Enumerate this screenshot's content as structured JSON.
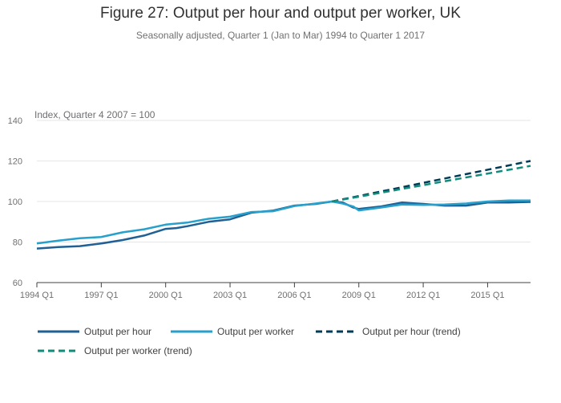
{
  "title": "Figure 27: Output per hour and output per worker, UK",
  "subtitle": "Seasonally adjusted, Quarter 1 (Jan to Mar) 1994 to Quarter 1 2017",
  "y_axis_title": "Index, Quarter 4 2007 = 100",
  "chart_data": {
    "type": "line",
    "title": "Figure 27: Output per hour and output per worker, UK",
    "ylabel": "Index, Quarter 4 2007 = 100",
    "ylim": [
      60,
      140
    ],
    "yticks": [
      60,
      80,
      100,
      120,
      140
    ],
    "x_tick_labels": [
      "1994 Q1",
      "1997 Q1",
      "2000 Q1",
      "2003 Q1",
      "2006 Q1",
      "2009 Q1",
      "2012 Q1",
      "2015 Q1"
    ],
    "grid": true,
    "legend_position": "bottom",
    "series": [
      {
        "name": "Output per hour",
        "color": "#206095",
        "dashed": false,
        "points": [
          [
            "1994 Q1",
            76.8
          ],
          [
            "1995 Q1",
            77.5
          ],
          [
            "1996 Q1",
            78.0
          ],
          [
            "1997 Q1",
            79.3
          ],
          [
            "1998 Q1",
            81.0
          ],
          [
            "1999 Q1",
            83.2
          ],
          [
            "2000 Q1",
            86.5
          ],
          [
            "2000 Q3",
            86.9
          ],
          [
            "2001 Q1",
            87.8
          ],
          [
            "2002 Q1",
            90.0
          ],
          [
            "2003 Q1",
            91.2
          ],
          [
            "2004 Q1",
            94.5
          ],
          [
            "2005 Q1",
            95.5
          ],
          [
            "2006 Q1",
            98.0
          ],
          [
            "2007 Q1",
            98.8
          ],
          [
            "2007 Q4",
            100.0
          ],
          [
            "2008 Q2",
            99.5
          ],
          [
            "2008 Q4",
            97.0
          ],
          [
            "2009 Q1",
            96.3
          ],
          [
            "2010 Q1",
            97.5
          ],
          [
            "2011 Q1",
            99.5
          ],
          [
            "2012 Q1",
            98.8
          ],
          [
            "2013 Q1",
            98.0
          ],
          [
            "2014 Q1",
            98.0
          ],
          [
            "2015 Q1",
            99.5
          ],
          [
            "2016 Q1",
            99.5
          ],
          [
            "2017 Q1",
            99.8
          ]
        ]
      },
      {
        "name": "Output per worker",
        "color": "#27a0cc",
        "dashed": false,
        "points": [
          [
            "1994 Q1",
            79.3
          ],
          [
            "1995 Q1",
            80.7
          ],
          [
            "1996 Q1",
            81.9
          ],
          [
            "1997 Q1",
            82.5
          ],
          [
            "1998 Q1",
            84.8
          ],
          [
            "1999 Q1",
            86.3
          ],
          [
            "2000 Q1",
            88.6
          ],
          [
            "2001 Q1",
            89.6
          ],
          [
            "2002 Q1",
            91.5
          ],
          [
            "2003 Q1",
            92.5
          ],
          [
            "2004 Q1",
            94.8
          ],
          [
            "2005 Q1",
            95.2
          ],
          [
            "2006 Q1",
            97.8
          ],
          [
            "2007 Q1",
            99.0
          ],
          [
            "2007 Q4",
            100.0
          ],
          [
            "2008 Q2",
            99.0
          ],
          [
            "2008 Q4",
            97.5
          ],
          [
            "2009 Q1",
            95.6
          ],
          [
            "2010 Q1",
            97.0
          ],
          [
            "2011 Q1",
            98.5
          ],
          [
            "2012 Q1",
            98.3
          ],
          [
            "2013 Q1",
            98.5
          ],
          [
            "2014 Q1",
            99.0
          ],
          [
            "2015 Q1",
            100.0
          ],
          [
            "2016 Q1",
            100.5
          ],
          [
            "2017 Q1",
            100.5
          ]
        ]
      },
      {
        "name": "Output per hour (trend)",
        "color": "#003c57",
        "dashed": true,
        "points": [
          [
            "2007 Q4",
            100.0
          ],
          [
            "2017 Q1",
            120.0
          ]
        ]
      },
      {
        "name": "Output per worker (trend)",
        "color": "#118c7b",
        "dashed": true,
        "points": [
          [
            "2007 Q4",
            100.0
          ],
          [
            "2017 Q1",
            117.6
          ]
        ]
      }
    ]
  }
}
